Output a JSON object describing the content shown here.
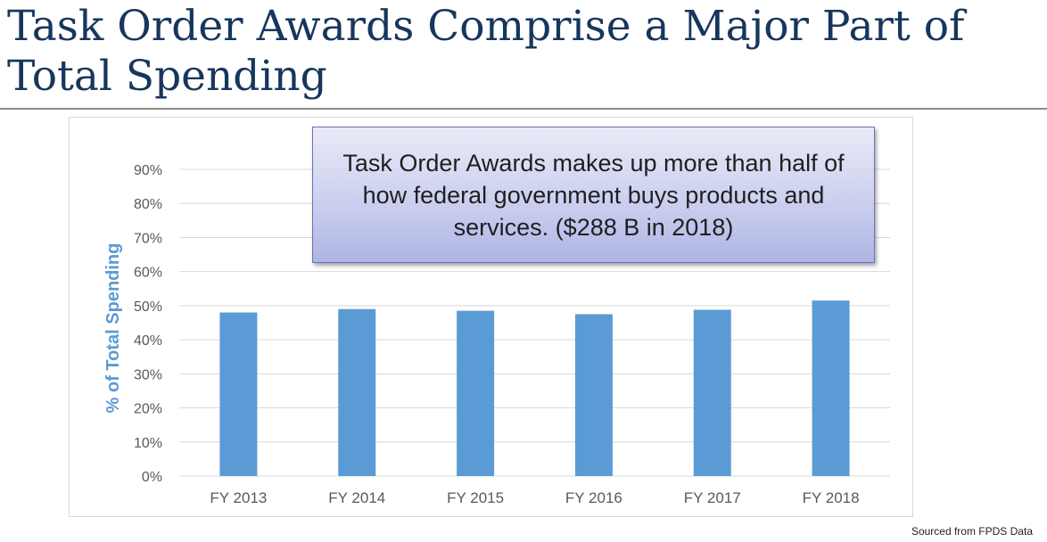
{
  "slide": {
    "title": "Task Order Awards Comprise a Major Part of Total Spending",
    "callout_text": "Task Order Awards makes up more than half of how federal government buys products and services. ($288 B in 2018)",
    "source_note": "Sourced from FPDS Data"
  },
  "chart_data": {
    "type": "bar",
    "title": "",
    "xlabel": "",
    "ylabel": "% of Total Spending",
    "categories": [
      "FY 2013",
      "FY 2014",
      "FY 2015",
      "FY 2016",
      "FY 2017",
      "FY 2018"
    ],
    "series": [
      {
        "values": [
          48,
          49,
          48.5,
          47.5,
          48.8,
          51.5
        ]
      }
    ],
    "ylim": [
      0,
      90
    ],
    "yticks": [
      0,
      10,
      20,
      30,
      40,
      50,
      60,
      70,
      80,
      90
    ],
    "ytick_labels": [
      "0%",
      "10%",
      "20%",
      "30%",
      "40%",
      "50%",
      "60%",
      "70%",
      "80%",
      "90%"
    ],
    "grid": true,
    "legend": "none",
    "colors": {
      "bar": "#5b9bd5",
      "ylabel": "#5b9bd5",
      "grid": "#d9d9d9",
      "tick_text": "#595959"
    }
  }
}
